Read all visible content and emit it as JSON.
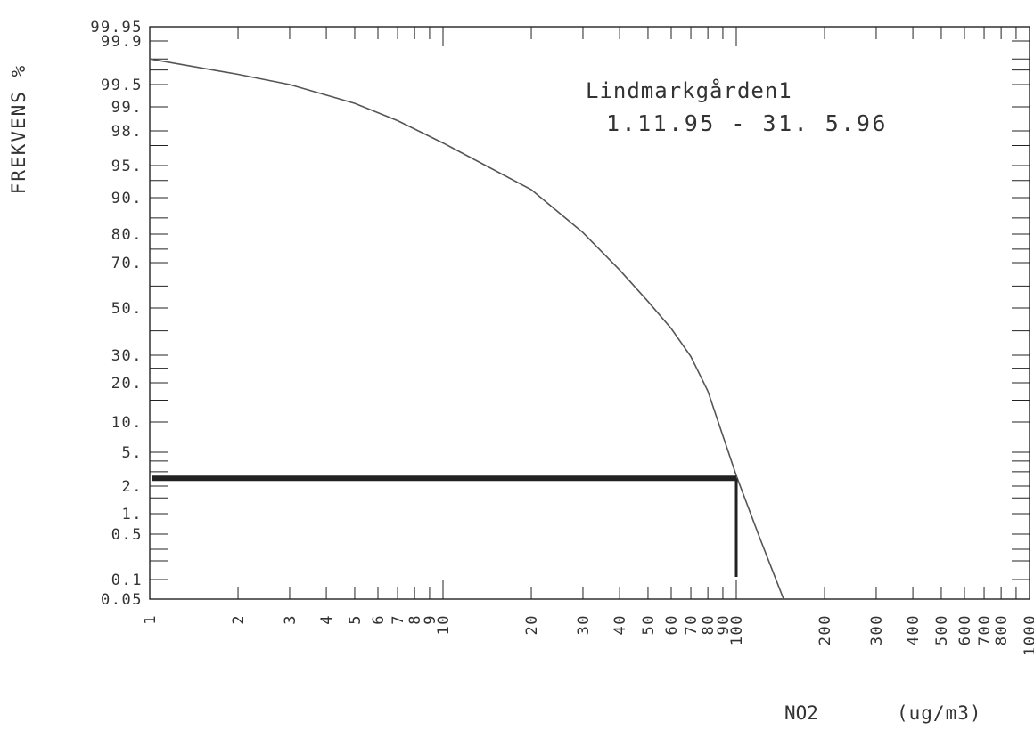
{
  "chart_data": {
    "type": "line",
    "title": "Lindmarkgården1",
    "subtitle": "1.11.95 - 31. 5.96",
    "xlabel": "NO2",
    "xunit": "(ug/m3)",
    "ylabel": "FREKVENS %",
    "x_scale": "log",
    "y_scale": "probability",
    "xlim": [
      1,
      1000
    ],
    "ylim": [
      0.05,
      99.95
    ],
    "x_tick_labels": [
      "1",
      "2",
      "3",
      "4",
      "5",
      "6",
      "7",
      "8",
      "9",
      "10",
      "20",
      "30",
      "40",
      "50",
      "60",
      "70",
      "80",
      "90",
      "100",
      "200",
      "300",
      "400",
      "500",
      "600",
      "700",
      "800",
      "1000"
    ],
    "y_tick_labels": [
      "99.95",
      "99.9",
      "99.5",
      "99.",
      "98.",
      "95.",
      "90.",
      "80.",
      "70.",
      "50.",
      "30.",
      "20.",
      "10.",
      "5.",
      "2.",
      "1.",
      "0.5",
      "0.1",
      "0.05"
    ],
    "series": [
      {
        "x": [
          1,
          2,
          3,
          5,
          7,
          10,
          20,
          30,
          40,
          50,
          60,
          70,
          80,
          100,
          120,
          145
        ],
        "y": [
          99.8,
          99.65,
          99.5,
          99.1,
          98.5,
          97.2,
          91.5,
          80.5,
          67,
          53,
          41,
          29.5,
          17.5,
          2.7,
          0.45,
          0.05
        ]
      }
    ],
    "markers": {
      "y_level": 2.5,
      "x_level": 100
    },
    "grid": false
  }
}
